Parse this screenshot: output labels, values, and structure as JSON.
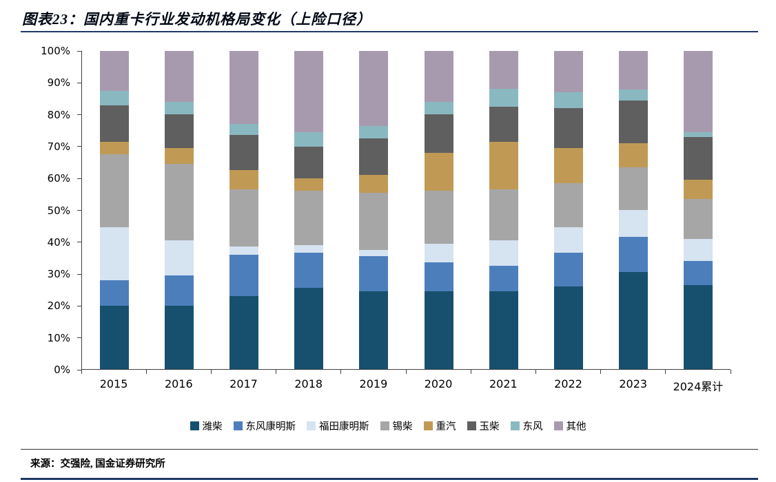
{
  "header": {
    "title": "图表23：国内重卡行业发动机格局变化（上险口径）"
  },
  "footer": {
    "source": "来源：交强险, 国金证券研究所"
  },
  "chart_data": {
    "type": "bar",
    "stacked": true,
    "percent": true,
    "title": "国内重卡行业发动机格局变化（上险口径）",
    "categories": [
      "2015",
      "2016",
      "2017",
      "2018",
      "2019",
      "2020",
      "2021",
      "2022",
      "2023",
      "2024累计"
    ],
    "series": [
      {
        "name": "潍柴",
        "color": "#17506e",
        "values": [
          20.0,
          20.0,
          23.0,
          25.5,
          24.5,
          24.5,
          24.5,
          26.0,
          30.5,
          26.5
        ]
      },
      {
        "name": "东风康明斯",
        "color": "#4d7ebc",
        "values": [
          8.0,
          9.5,
          13.0,
          11.0,
          11.0,
          9.0,
          8.0,
          10.5,
          11.0,
          7.5
        ]
      },
      {
        "name": "福田康明斯",
        "color": "#d6e3f1",
        "values": [
          16.5,
          11.0,
          2.5,
          2.5,
          2.0,
          6.0,
          8.0,
          8.0,
          8.5,
          7.0
        ]
      },
      {
        "name": "锡柴",
        "color": "#a6a6a6",
        "values": [
          23.0,
          24.0,
          18.0,
          17.0,
          18.0,
          16.5,
          16.0,
          14.0,
          13.5,
          12.5
        ]
      },
      {
        "name": "重汽",
        "color": "#c09a55",
        "values": [
          4.0,
          5.0,
          6.0,
          4.0,
          5.5,
          12.0,
          15.0,
          11.0,
          7.5,
          6.0
        ]
      },
      {
        "name": "玉柴",
        "color": "#5f5f5f",
        "values": [
          11.5,
          10.5,
          11.0,
          10.0,
          11.5,
          12.0,
          11.0,
          12.5,
          13.5,
          13.5
        ]
      },
      {
        "name": "东风",
        "color": "#8ab8c0",
        "values": [
          4.5,
          4.0,
          3.5,
          4.5,
          4.0,
          4.0,
          5.5,
          5.0,
          3.5,
          1.5
        ]
      },
      {
        "name": "其他",
        "color": "#a89aae",
        "values": [
          12.5,
          16.0,
          23.0,
          25.5,
          23.5,
          16.0,
          12.0,
          13.0,
          12.0,
          25.5
        ]
      }
    ],
    "ylim": [
      0,
      100
    ],
    "ytick_step": 10,
    "ytick_suffix": "%",
    "grid": false,
    "legend_position": "bottom"
  }
}
